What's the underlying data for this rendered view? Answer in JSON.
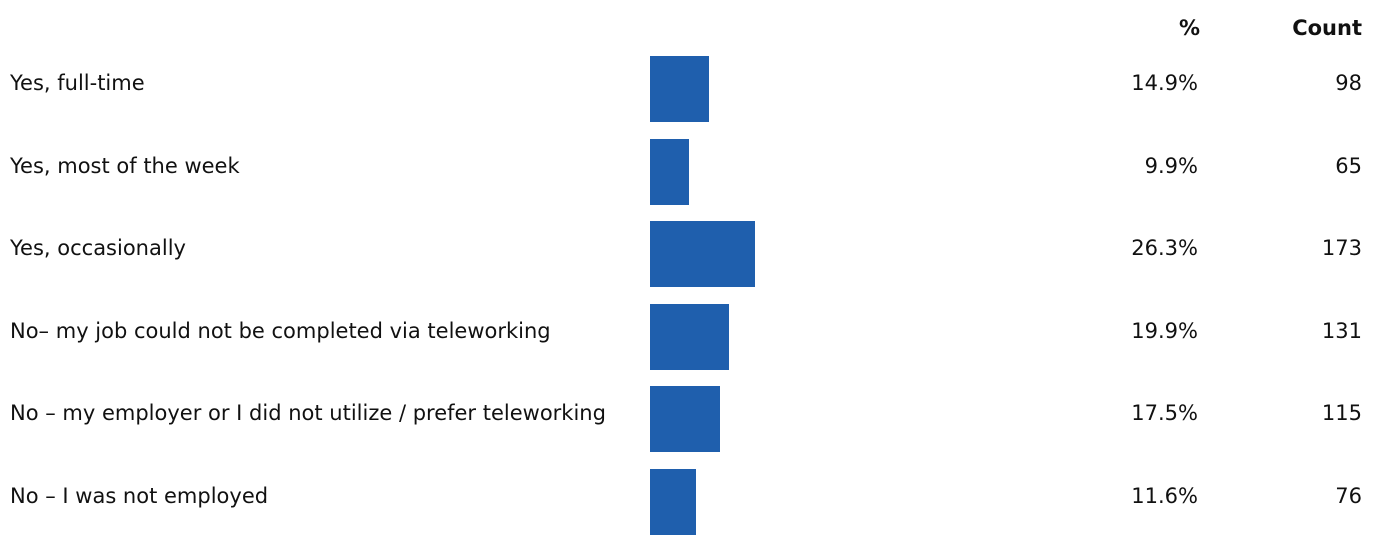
{
  "chart_data": {
    "type": "bar",
    "column_headers": [
      "%",
      "Count"
    ],
    "categories": [
      "Yes, full-time",
      "Yes, most of the week",
      "Yes, occasionally",
      "No– my job could not be completed via teleworking",
      "No – my employer or I did not utilize / prefer teleworking",
      "No – I was not employed"
    ],
    "values": [
      14.9,
      9.9,
      26.3,
      19.9,
      17.5,
      11.6
    ],
    "value_labels": [
      "14.9%",
      "9.9%",
      "26.3%",
      "19.9%",
      "17.5%",
      "11.6%"
    ],
    "counts": [
      98,
      65,
      173,
      131,
      115,
      76
    ],
    "color": "#1f5fad"
  }
}
